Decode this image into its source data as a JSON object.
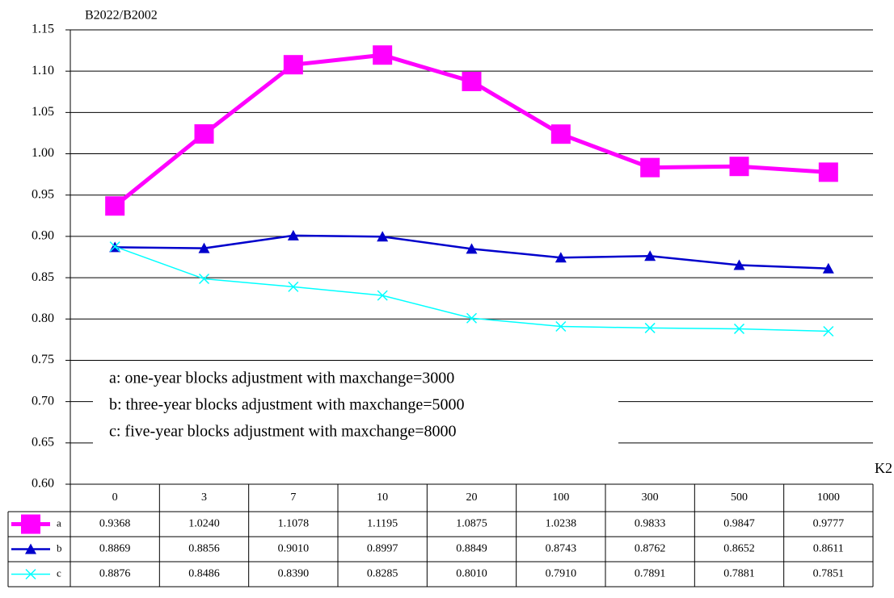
{
  "chart_data": {
    "type": "line",
    "y_label": "B2022/B2002",
    "x_label": "K2",
    "categories": [
      "0",
      "3",
      "7",
      "10",
      "20",
      "100",
      "300",
      "500",
      "1000"
    ],
    "series": [
      {
        "name": "a",
        "color": "#ff00ff",
        "marker": "square",
        "values": [
          0.9368,
          1.024,
          1.1078,
          1.1195,
          1.0875,
          1.0238,
          0.9833,
          0.9847,
          0.9777
        ],
        "value_labels": [
          "0.9368",
          "1.0240",
          "1.1078",
          "1.1195",
          "1.0875",
          "1.0238",
          "0.9833",
          "0.9847",
          "0.9777"
        ]
      },
      {
        "name": "b",
        "color": "#0000cc",
        "marker": "triangle",
        "values": [
          0.8869,
          0.8856,
          0.901,
          0.8997,
          0.8849,
          0.8743,
          0.8762,
          0.8652,
          0.8611
        ],
        "value_labels": [
          "0.8869",
          "0.8856",
          "0.9010",
          "0.8997",
          "0.8849",
          "0.8743",
          "0.8762",
          "0.8652",
          "0.8611"
        ]
      },
      {
        "name": "c",
        "color": "#00ffff",
        "marker": "x",
        "values": [
          0.8876,
          0.8486,
          0.839,
          0.8285,
          0.801,
          0.791,
          0.7891,
          0.7881,
          0.7851
        ],
        "value_labels": [
          "0.8876",
          "0.8486",
          "0.8390",
          "0.8285",
          "0.8010",
          "0.7910",
          "0.7891",
          "0.7881",
          "0.7851"
        ]
      }
    ],
    "ylim": [
      0.6,
      1.15
    ],
    "yticks": [
      {
        "value": 0.6,
        "label": "0.60"
      },
      0.65,
      {
        "value": 0.7,
        "label": "0.70"
      },
      0.75,
      {
        "value": 0.8,
        "label": "0.80"
      },
      0.85,
      {
        "value": 0.9,
        "label": "0.90"
      },
      0.95,
      {
        "value": 1.0,
        "label": "1.00"
      },
      1.05,
      {
        "value": 1.1,
        "label": "1.10"
      },
      1.15
    ],
    "grid": true,
    "annotations": [
      "a: one-year blocks adjustment with maxchange=3000",
      "b: three-year blocks adjustment with maxchange=5000",
      "c: five-year blocks adjustment with maxchange=8000"
    ]
  }
}
